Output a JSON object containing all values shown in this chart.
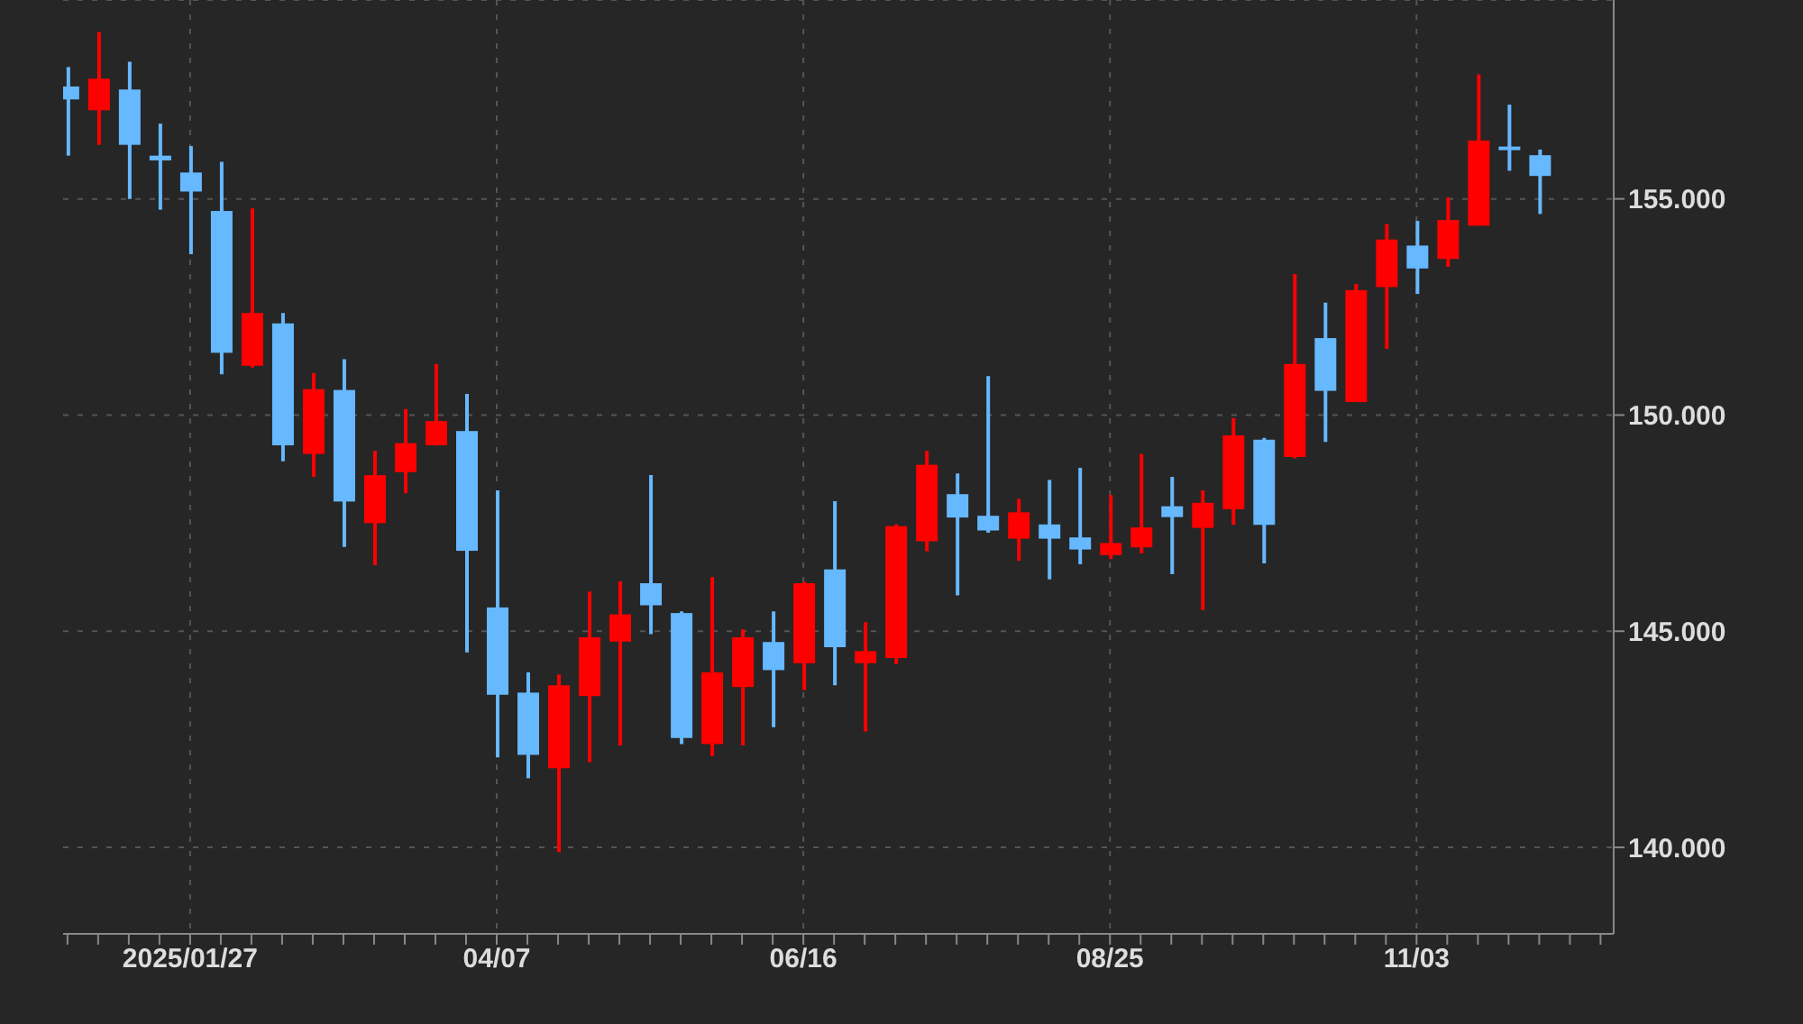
{
  "chart_data": {
    "type": "candlestick",
    "x": [
      "2024-12-30",
      "2025-01-06",
      "2025-01-13",
      "2025-01-20",
      "2025-01-27",
      "2025-02-03",
      "2025-02-10",
      "2025-02-17",
      "2025-02-24",
      "2025-03-03",
      "2025-03-10",
      "2025-03-17",
      "2025-03-24",
      "2025-03-31",
      "2025-04-07",
      "2025-04-14",
      "2025-04-21",
      "2025-04-28",
      "2025-05-05",
      "2025-05-12",
      "2025-05-19",
      "2025-05-26",
      "2025-06-02",
      "2025-06-09",
      "2025-06-16",
      "2025-06-23",
      "2025-06-30",
      "2025-07-07",
      "2025-07-14",
      "2025-07-21",
      "2025-07-28",
      "2025-08-04",
      "2025-08-11",
      "2025-08-18",
      "2025-08-25",
      "2025-09-01",
      "2025-09-08",
      "2025-09-15",
      "2025-09-22",
      "2025-09-29",
      "2025-10-06",
      "2025-10-13",
      "2025-10-20",
      "2025-10-27",
      "2025-11-03",
      "2025-11-10",
      "2025-11-17",
      "2025-11-24",
      "2025-12-01"
    ],
    "ohlc": [
      [
        157.6,
        158.05,
        156.0,
        157.3
      ],
      [
        157.05,
        158.86,
        156.25,
        157.78
      ],
      [
        157.53,
        158.17,
        155.0,
        156.25
      ],
      [
        156.0,
        156.74,
        154.75,
        155.89
      ],
      [
        155.61,
        156.22,
        153.72,
        155.17
      ],
      [
        154.72,
        155.86,
        150.94,
        151.44
      ],
      [
        151.14,
        154.78,
        151.1,
        152.36
      ],
      [
        152.12,
        152.36,
        148.93,
        149.3
      ],
      [
        149.1,
        150.97,
        148.57,
        150.6
      ],
      [
        150.58,
        151.29,
        146.95,
        148.0
      ],
      [
        147.5,
        149.17,
        146.53,
        148.61
      ],
      [
        148.68,
        150.14,
        148.19,
        149.35
      ],
      [
        149.3,
        151.18,
        149.3,
        149.86
      ],
      [
        149.63,
        150.49,
        144.51,
        146.86
      ],
      [
        145.55,
        148.26,
        142.08,
        143.53
      ],
      [
        143.58,
        144.05,
        141.6,
        142.14
      ],
      [
        141.83,
        144.0,
        139.89,
        143.75
      ],
      [
        143.5,
        145.92,
        141.97,
        144.86
      ],
      [
        144.76,
        146.15,
        142.36,
        145.39
      ],
      [
        146.11,
        148.61,
        144.93,
        145.6
      ],
      [
        145.42,
        145.46,
        142.39,
        142.53
      ],
      [
        142.39,
        146.25,
        142.11,
        144.05
      ],
      [
        143.71,
        145.04,
        142.36,
        144.86
      ],
      [
        144.75,
        145.46,
        142.78,
        144.1
      ],
      [
        144.26,
        146.14,
        143.64,
        146.11
      ],
      [
        146.43,
        148.01,
        143.75,
        144.63
      ],
      [
        144.26,
        145.21,
        142.68,
        144.54
      ],
      [
        144.38,
        147.47,
        144.24,
        147.43
      ],
      [
        147.08,
        149.17,
        146.85,
        148.85
      ],
      [
        148.17,
        148.65,
        145.83,
        147.63
      ],
      [
        147.67,
        150.9,
        147.28,
        147.33
      ],
      [
        147.14,
        148.06,
        146.63,
        147.75
      ],
      [
        147.47,
        148.5,
        146.2,
        147.14
      ],
      [
        147.17,
        148.78,
        146.55,
        146.89
      ],
      [
        146.76,
        148.15,
        146.67,
        147.04
      ],
      [
        146.94,
        149.1,
        146.8,
        147.4
      ],
      [
        147.89,
        148.57,
        146.32,
        147.64
      ],
      [
        147.39,
        148.26,
        145.49,
        147.97
      ],
      [
        147.82,
        149.93,
        147.46,
        149.53
      ],
      [
        149.43,
        149.47,
        146.57,
        147.46
      ],
      [
        149.03,
        153.26,
        149.0,
        151.18
      ],
      [
        151.78,
        152.6,
        149.38,
        150.56
      ],
      [
        150.3,
        153.03,
        150.3,
        152.89
      ],
      [
        152.96,
        154.42,
        151.53,
        154.06
      ],
      [
        153.92,
        154.49,
        152.8,
        153.39
      ],
      [
        153.61,
        155.03,
        153.43,
        154.51
      ],
      [
        154.38,
        157.88,
        154.38,
        156.35
      ],
      [
        156.21,
        157.18,
        155.65,
        156.14
      ],
      [
        156.01,
        156.14,
        154.65,
        155.53
      ]
    ],
    "colors": [
      "#66b8ff",
      "#ff0000",
      "#66b8ff",
      "#66b8ff",
      "#66b8ff",
      "#66b8ff",
      "#ff0000",
      "#66b8ff",
      "#ff0000",
      "#66b8ff",
      "#ff0000",
      "#ff0000",
      "#ff0000",
      "#66b8ff",
      "#66b8ff",
      "#66b8ff",
      "#ff0000",
      "#ff0000",
      "#ff0000",
      "#66b8ff",
      "#66b8ff",
      "#ff0000",
      "#ff0000",
      "#66b8ff",
      "#ff0000",
      "#66b8ff",
      "#ff0000",
      "#ff0000",
      "#ff0000",
      "#66b8ff",
      "#66b8ff",
      "#ff0000",
      "#66b8ff",
      "#66b8ff",
      "#ff0000",
      "#ff0000",
      "#66b8ff",
      "#ff0000",
      "#ff0000",
      "#66b8ff",
      "#ff0000",
      "#66b8ff",
      "#ff0000",
      "#ff0000",
      "#66b8ff",
      "#ff0000",
      "#ff0000",
      "#66b8ff",
      "#66b8ff"
    ],
    "xlim": [
      "2024-12-29",
      "2025-12-18"
    ],
    "xticks": [
      {
        "value": "2024-12-30",
        "label": null
      },
      {
        "value": "2025-01-06",
        "label": null
      },
      {
        "value": "2025-01-13",
        "label": null
      },
      {
        "value": "2025-01-20",
        "label": null
      },
      {
        "value": "2025-01-27",
        "label": "2025/01/27"
      },
      {
        "value": "2025-02-03",
        "label": null
      },
      {
        "value": "2025-02-10",
        "label": null
      },
      {
        "value": "2025-02-17",
        "label": null
      },
      {
        "value": "2025-02-24",
        "label": null
      },
      {
        "value": "2025-03-03",
        "label": null
      },
      {
        "value": "2025-03-10",
        "label": null
      },
      {
        "value": "2025-03-17",
        "label": null
      },
      {
        "value": "2025-03-24",
        "label": null
      },
      {
        "value": "2025-03-31",
        "label": null
      },
      {
        "value": "2025-04-07",
        "label": "04/07"
      },
      {
        "value": "2025-04-14",
        "label": null
      },
      {
        "value": "2025-04-21",
        "label": null
      },
      {
        "value": "2025-04-28",
        "label": null
      },
      {
        "value": "2025-05-05",
        "label": null
      },
      {
        "value": "2025-05-12",
        "label": null
      },
      {
        "value": "2025-05-19",
        "label": null
      },
      {
        "value": "2025-05-26",
        "label": null
      },
      {
        "value": "2025-06-02",
        "label": null
      },
      {
        "value": "2025-06-09",
        "label": null
      },
      {
        "value": "2025-06-16",
        "label": "06/16"
      },
      {
        "value": "2025-06-23",
        "label": null
      },
      {
        "value": "2025-06-30",
        "label": null
      },
      {
        "value": "2025-07-07",
        "label": null
      },
      {
        "value": "2025-07-14",
        "label": null
      },
      {
        "value": "2025-07-21",
        "label": null
      },
      {
        "value": "2025-07-28",
        "label": null
      },
      {
        "value": "2025-08-04",
        "label": null
      },
      {
        "value": "2025-08-11",
        "label": null
      },
      {
        "value": "2025-08-18",
        "label": null
      },
      {
        "value": "2025-08-25",
        "label": "08/25"
      },
      {
        "value": "2025-09-01",
        "label": null
      },
      {
        "value": "2025-09-08",
        "label": null
      },
      {
        "value": "2025-09-15",
        "label": null
      },
      {
        "value": "2025-09-22",
        "label": null
      },
      {
        "value": "2025-09-29",
        "label": null
      },
      {
        "value": "2025-10-06",
        "label": null
      },
      {
        "value": "2025-10-13",
        "label": null
      },
      {
        "value": "2025-10-20",
        "label": null
      },
      {
        "value": "2025-10-27",
        "label": null
      },
      {
        "value": "2025-11-03",
        "label": "11/03"
      },
      {
        "value": "2025-11-10",
        "label": null
      },
      {
        "value": "2025-11-17",
        "label": null
      },
      {
        "value": "2025-11-24",
        "label": null
      },
      {
        "value": "2025-12-01",
        "label": null
      },
      {
        "value": "2025-12-08",
        "label": null
      },
      {
        "value": "2025-12-15",
        "label": null
      }
    ],
    "ylim": [
      138,
      159.6
    ],
    "yticks": [
      {
        "value": 140,
        "label": "140.000"
      },
      {
        "value": 145,
        "label": "145.000"
      },
      {
        "value": 150,
        "label": "150.000"
      },
      {
        "value": 155,
        "label": "155.000"
      }
    ],
    "grid": true
  }
}
